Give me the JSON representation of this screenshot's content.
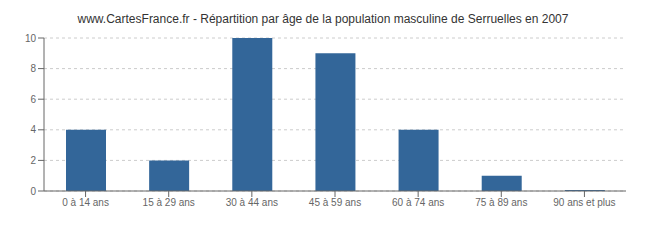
{
  "chart_data": {
    "type": "bar",
    "title": "www.CartesFrance.fr - Répartition par âge de la population masculine de Serruelles en 2007",
    "categories": [
      "0 à 14 ans",
      "15 à 29 ans",
      "30 à 44 ans",
      "45 à 59 ans",
      "60 à 74 ans",
      "75 à 89 ans",
      "90 ans et plus"
    ],
    "values": [
      4,
      2,
      10,
      9,
      4,
      1,
      0.07
    ],
    "color": "#336699",
    "ylim": [
      0,
      10
    ],
    "yticks": [
      0,
      2,
      4,
      6,
      8,
      10
    ],
    "grid": true
  }
}
